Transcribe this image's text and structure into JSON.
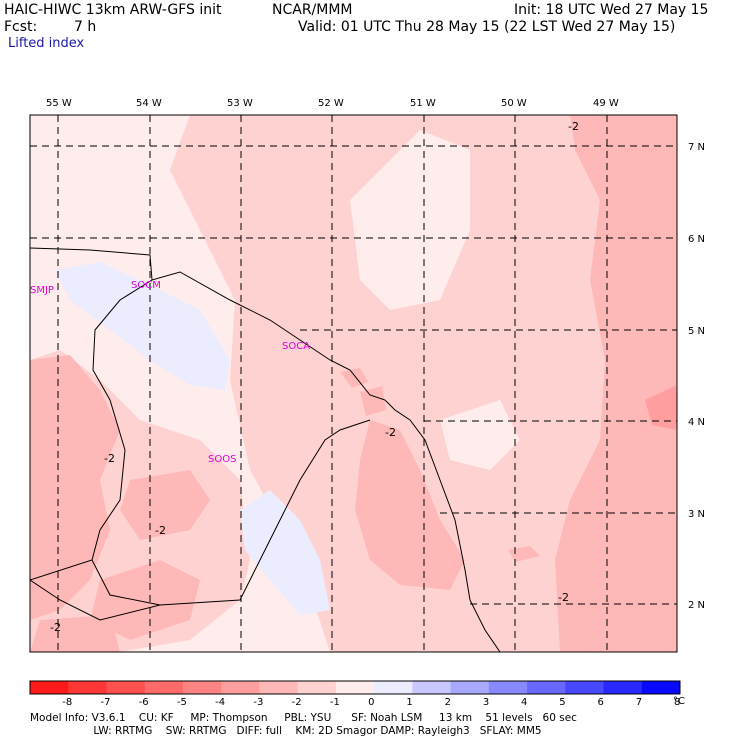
{
  "header": {
    "model": "HAIC-HIWC 13km ARW-GFS init",
    "org": "NCAR/MMM",
    "init": "Init: 18 UTC Wed 27 May 15",
    "fcst_label": "Fcst:",
    "fcst_value": "7 h",
    "valid": "Valid: 01 UTC Thu 28 May 15 (22 LST Wed 27 May 15)",
    "field": "Lifted index"
  },
  "axes": {
    "lon_labels": [
      "55 W",
      "54 W",
      "53 W",
      "52 W",
      "51 W",
      "50 W",
      "49 W"
    ],
    "lat_labels": [
      "7 N",
      "6 N",
      "5 N",
      "4 N",
      "3 N",
      "2 N"
    ]
  },
  "stations": [
    "SMJP",
    "SOCM",
    "SOCA",
    "SOOS"
  ],
  "contour_labels": [
    "-2",
    "-2",
    "-2",
    "-2",
    "-2",
    "-2"
  ],
  "colorbar": {
    "ticks": [
      "-8",
      "-7",
      "-6",
      "-5",
      "-4",
      "-3",
      "-2",
      "-1",
      "0",
      "1",
      "2",
      "3",
      "4",
      "5",
      "6",
      "7",
      "8"
    ],
    "unit": "°C",
    "colors": [
      "#ff1a1a",
      "#ff3636",
      "#ff5050",
      "#ff6a6a",
      "#ff8484",
      "#ff9e9e",
      "#ffb8b8",
      "#ffd2d2",
      "#ffecec",
      "#ececff",
      "#c8c8ff",
      "#a8a8ff",
      "#8888ff",
      "#6868ff",
      "#4848ff",
      "#2828ff",
      "#0808ff"
    ]
  },
  "footer": {
    "line1": "Model Info: V3.6.1    CU: KF     MP: Thompson     PBL: YSU      SF: Noah LSM     13 km    51 levels   60 sec",
    "line2": "                   LW: RRTMG    SW: RRTMG   DIFF: full    KM: 2D Smagor DAMP: Rayleigh3   SFLAY: MM5"
  }
}
